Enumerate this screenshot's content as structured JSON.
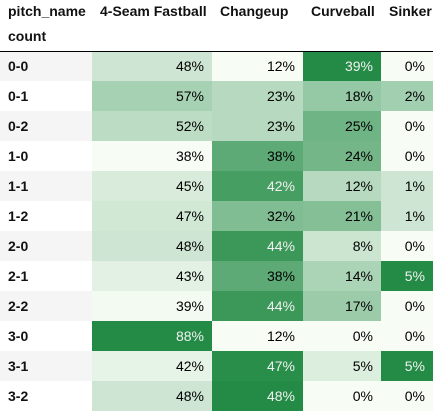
{
  "table": {
    "column_index_name": "pitch_name",
    "row_index_name": "count",
    "columns": [
      "4-Seam Fastball",
      "Changeup",
      "Curveball",
      "Sinker"
    ],
    "rows": [
      {
        "label": "0-0",
        "values": [
          "48%",
          "12%",
          "39%",
          "0%"
        ],
        "nums": [
          48,
          12,
          39,
          0
        ]
      },
      {
        "label": "0-1",
        "values": [
          "57%",
          "23%",
          "18%",
          "2%"
        ],
        "nums": [
          57,
          23,
          18,
          2
        ]
      },
      {
        "label": "0-2",
        "values": [
          "52%",
          "23%",
          "25%",
          "0%"
        ],
        "nums": [
          52,
          23,
          25,
          0
        ]
      },
      {
        "label": "1-0",
        "values": [
          "38%",
          "38%",
          "24%",
          "0%"
        ],
        "nums": [
          38,
          38,
          24,
          0
        ]
      },
      {
        "label": "1-1",
        "values": [
          "45%",
          "42%",
          "12%",
          "1%"
        ],
        "nums": [
          45,
          42,
          12,
          1
        ]
      },
      {
        "label": "1-2",
        "values": [
          "47%",
          "32%",
          "21%",
          "1%"
        ],
        "nums": [
          47,
          32,
          21,
          1
        ]
      },
      {
        "label": "2-0",
        "values": [
          "48%",
          "44%",
          "8%",
          "0%"
        ],
        "nums": [
          48,
          44,
          8,
          0
        ]
      },
      {
        "label": "2-1",
        "values": [
          "43%",
          "38%",
          "14%",
          "5%"
        ],
        "nums": [
          43,
          38,
          14,
          5
        ]
      },
      {
        "label": "2-2",
        "values": [
          "39%",
          "44%",
          "17%",
          "0%"
        ],
        "nums": [
          39,
          44,
          17,
          0
        ]
      },
      {
        "label": "3-0",
        "values": [
          "88%",
          "12%",
          "0%",
          "0%"
        ],
        "nums": [
          88,
          12,
          0,
          0
        ]
      },
      {
        "label": "3-1",
        "values": [
          "42%",
          "47%",
          "5%",
          "5%"
        ],
        "nums": [
          42,
          47,
          5,
          5
        ]
      },
      {
        "label": "3-2",
        "values": [
          "48%",
          "48%",
          "0%",
          "0%"
        ],
        "nums": [
          48,
          48,
          0,
          0
        ]
      }
    ]
  },
  "colors": {
    "scale_low": "#f7fcf5",
    "scale_high": "#238b45",
    "text_dark": "#000000",
    "text_light": "#f1f1f1",
    "stripe": "#f5f5f5"
  }
}
